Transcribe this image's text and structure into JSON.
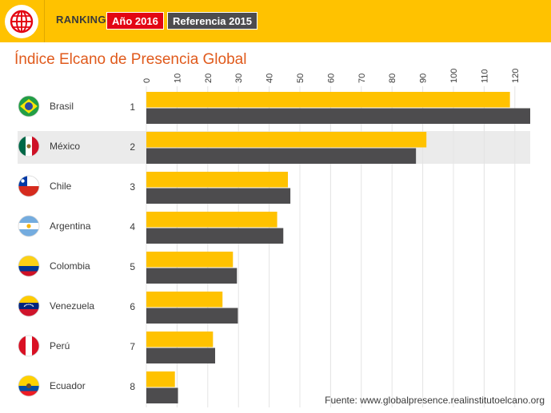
{
  "header": {
    "ranking_label": "RANKING",
    "tab_2016": "Año 2016",
    "tab_2015": "Referencia 2015",
    "colors": {
      "bar": "#ffc200",
      "active_tab": "#e30613",
      "inactive_tab": "#4d4c4e"
    },
    "logo_icon": "globe-icon"
  },
  "chart_data": {
    "type": "bar",
    "orientation": "horizontal",
    "title": "Índice Elcano de Presencia Global",
    "xlim": [
      0,
      125
    ],
    "ticks": [
      0,
      10,
      20,
      30,
      40,
      50,
      60,
      70,
      80,
      90,
      100,
      110,
      120
    ],
    "grid": true,
    "highlighted_row": "México",
    "categories": [
      "Brasil",
      "México",
      "Chile",
      "Argentina",
      "Colombia",
      "Venezuela",
      "Perú",
      "Ecuador"
    ],
    "ranks": [
      "1",
      "2",
      "3",
      "4",
      "5",
      "6",
      "7",
      "8"
    ],
    "flag_icons": [
      "flag-brazil-icon",
      "flag-mexico-icon",
      "flag-chile-icon",
      "flag-argentina-icon",
      "flag-colombia-icon",
      "flag-venezuela-icon",
      "flag-peru-icon",
      "flag-ecuador-icon"
    ],
    "series": [
      {
        "name": "Año 2016",
        "color": "#ffc200",
        "values": [
          118.4,
          91.2,
          46.1,
          42.6,
          28.2,
          24.8,
          21.7,
          9.3
        ]
      },
      {
        "name": "Referencia 2015",
        "color": "#4d4c4e",
        "values": [
          125.0,
          87.8,
          46.9,
          44.6,
          29.5,
          29.8,
          22.4,
          10.3
        ]
      }
    ]
  },
  "footer": {
    "source": "Fuente: www.globalpresence.realinstitutoelcano.org"
  }
}
